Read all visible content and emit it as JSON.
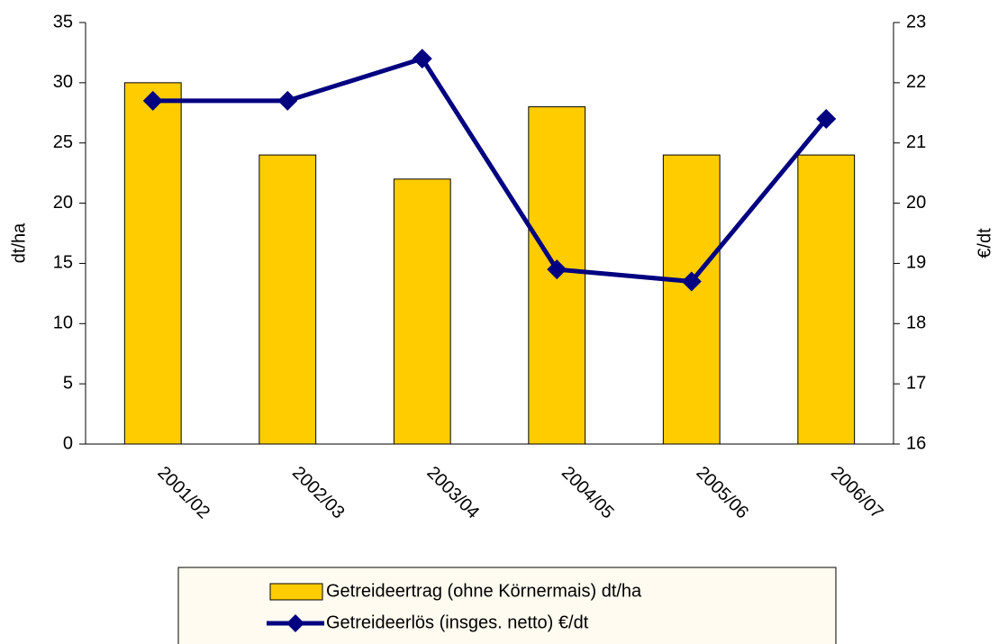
{
  "chart_data": {
    "type": "bar",
    "categories": [
      "2001/02",
      "2002/03",
      "2003/04",
      "2004/05",
      "2005/06",
      "2006/07"
    ],
    "series": [
      {
        "name": "Getreideertrag (ohne Körnermais) dt/ha",
        "color": "#ffcc00",
        "type": "bar",
        "values": [
          30,
          24,
          22,
          28,
          24,
          24
        ]
      },
      {
        "name": "Getreideerlös (insges. netto) €/dt",
        "color": "#000080",
        "type": "line",
        "axis": "y2",
        "values": [
          21.7,
          21.7,
          22.4,
          18.9,
          18.7,
          21.4
        ]
      }
    ],
    "ylabel": "dt/ha",
    "y2label": "€/dt",
    "ylim": [
      0,
      35
    ],
    "yticks": [
      0,
      5,
      10,
      15,
      20,
      25,
      30,
      35
    ],
    "y2lim": [
      16,
      23
    ],
    "y2ticks": [
      16,
      17,
      18,
      19,
      20,
      21,
      22,
      23
    ],
    "grid": false
  }
}
